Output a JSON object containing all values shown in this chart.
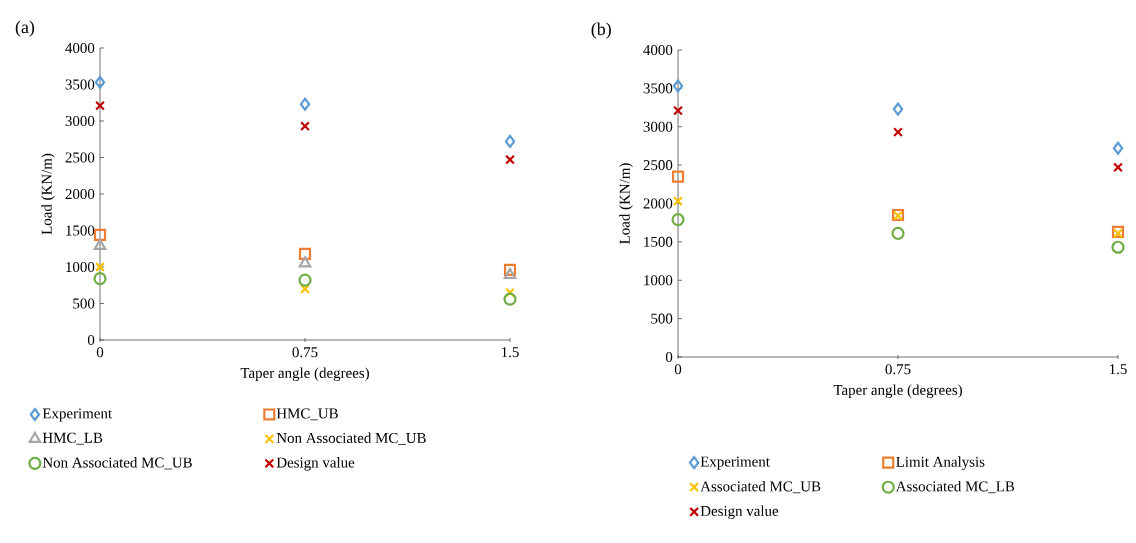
{
  "chart_data": [
    {
      "type": "scatter",
      "title": "(a)",
      "xlabel": "Taper angle (degrees)",
      "ylabel": "Load (KN/m)",
      "x": [
        0,
        0.75,
        1.5
      ],
      "xlim": [
        0,
        1.5
      ],
      "xticks": [
        0,
        0.75,
        1.5
      ],
      "ylim": [
        0,
        4000
      ],
      "yticks": [
        0,
        500,
        1000,
        1500,
        2000,
        2500,
        3000,
        3500,
        4000
      ],
      "legend": "bottom",
      "series": [
        {
          "name": "Experiment",
          "color": "#5b9bd5",
          "marker": "diamond",
          "values": [
            3530,
            3230,
            2720
          ]
        },
        {
          "name": "HMC_UB",
          "color": "#ed7d31",
          "marker": "square",
          "values": [
            1440,
            1180,
            960
          ]
        },
        {
          "name": "HMC_LB",
          "color": "#a5a5a5",
          "marker": "triangle",
          "values": [
            1290,
            1050,
            890
          ]
        },
        {
          "name": "Non Associated MC_UB",
          "color": "#ffc000",
          "marker": "cross",
          "values": [
            1000,
            700,
            650
          ]
        },
        {
          "name": "Non Associated MC_UB",
          "color": "#70ad47",
          "marker": "circle",
          "values": [
            840,
            820,
            560
          ]
        },
        {
          "name": "Design value",
          "color": "#c00000",
          "marker": "cross",
          "values": [
            3210,
            2930,
            2470
          ]
        }
      ]
    },
    {
      "type": "scatter",
      "title": "(b)",
      "xlabel": "Taper angle (degrees)",
      "ylabel": "Load (KN/m)",
      "x": [
        0,
        0.75,
        1.5
      ],
      "xlim": [
        0,
        1.5
      ],
      "xticks": [
        0,
        0.75,
        1.5
      ],
      "ylim": [
        0,
        4000
      ],
      "yticks": [
        0,
        500,
        1000,
        1500,
        2000,
        2500,
        3000,
        3500,
        4000
      ],
      "legend": "bottom",
      "series": [
        {
          "name": "Experiment",
          "color": "#5b9bd5",
          "marker": "diamond",
          "values": [
            3530,
            3230,
            2720
          ]
        },
        {
          "name": "Limit Analysis",
          "color": "#ed7d31",
          "marker": "square",
          "values": [
            2350,
            1850,
            1630
          ]
        },
        {
          "name": "Associated MC_UB",
          "color": "#ffc000",
          "marker": "cross",
          "values": [
            2030,
            1840,
            1610
          ]
        },
        {
          "name": "Associated MC_LB",
          "color": "#70ad47",
          "marker": "circle",
          "values": [
            1790,
            1610,
            1430
          ]
        },
        {
          "name": "Design value",
          "color": "#c00000",
          "marker": "cross",
          "values": [
            3210,
            2930,
            2470
          ]
        }
      ]
    }
  ]
}
